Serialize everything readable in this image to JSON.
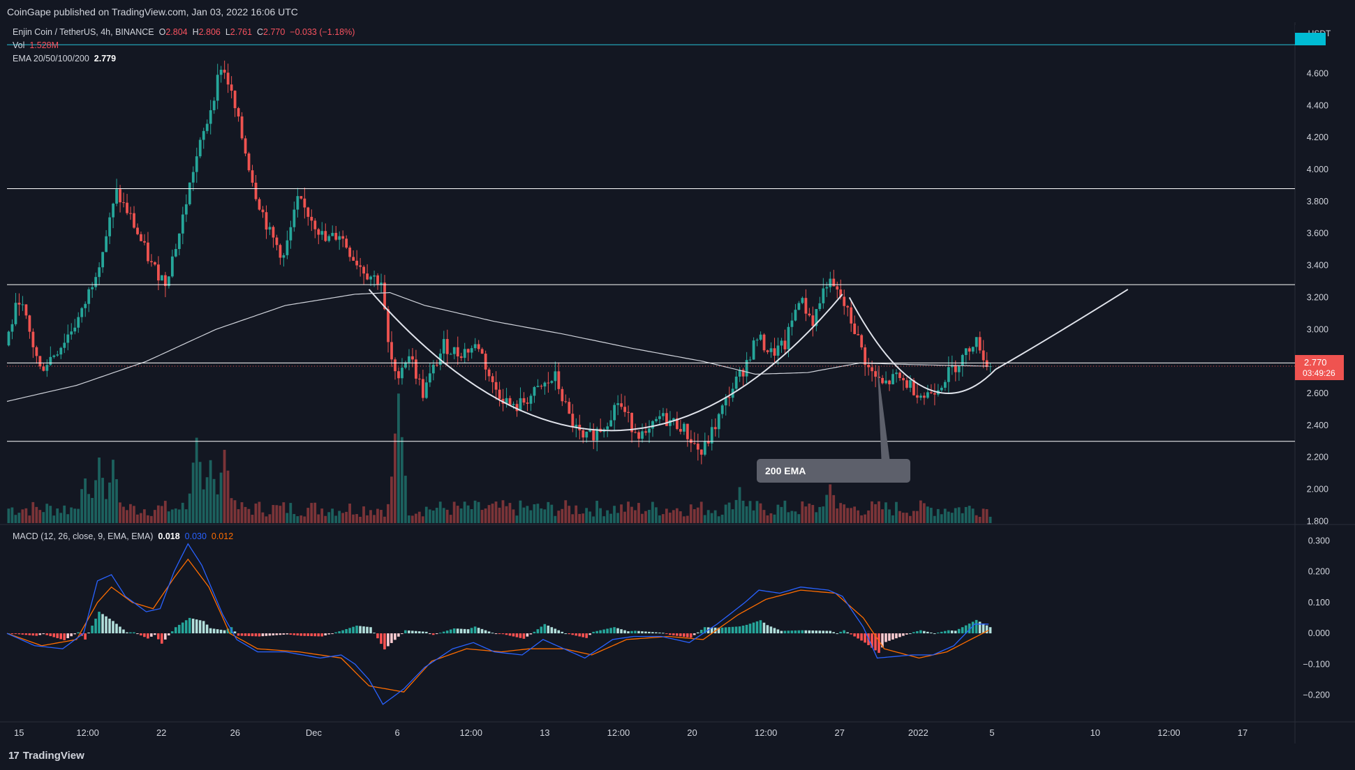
{
  "header": {
    "publisher": "CoinGape published on TradingView.com, Jan 03, 2022 16:06 UTC"
  },
  "legend": {
    "symbol": "Enjin Coin / TetherUS, 4h, BINANCE",
    "o_label": "O",
    "o_value": "2.804",
    "h_label": "H",
    "h_value": "2.806",
    "l_label": "L",
    "l_value": "2.761",
    "c_label": "C",
    "c_value": "2.770",
    "change": "−0.033 (−1.18%)",
    "vol_label": "Vol",
    "vol_value": "1.528M",
    "ema_label": "EMA 20/50/100/200",
    "ema_value": "2.779",
    "macd_label": "MACD (12, 26, close, 9, EMA, EMA)",
    "macd_hist": "0.018",
    "macd_line": "0.030",
    "macd_signal": "0.012"
  },
  "price_axis": {
    "currency": "USDT",
    "last_price": "2.770",
    "countdown": "03:49:26"
  },
  "annotation": {
    "ema_callout": "200 EMA"
  },
  "footer": {
    "brand": "TradingView"
  },
  "colors": {
    "background": "#131722",
    "up": "#26a69a",
    "down": "#ef5350",
    "macd_line": "#2962ff",
    "signal_line": "#ff6d00",
    "drawings": "#ffffff",
    "callout": "#5d606b"
  },
  "chart_data": [
    {
      "type": "candlestick",
      "title": "Enjin Coin / TetherUS, 4h, BINANCE",
      "x_tick_labels": [
        "15",
        "12:00",
        "22",
        "26",
        "Dec",
        "6",
        "12:00",
        "13",
        "12:00",
        "20",
        "12:00",
        "27",
        "2022",
        "5",
        "10",
        "12:00",
        "17"
      ],
      "y_tick_labels": [
        "1.800",
        "2.000",
        "2.200",
        "2.400",
        "2.600",
        "3.000",
        "3.200",
        "3.400",
        "3.600",
        "3.800",
        "4.000",
        "4.200",
        "4.400",
        "4.600"
      ],
      "ylim": [
        1.78,
        4.82
      ],
      "horizontal_levels": [
        3.88,
        3.28,
        2.79,
        2.3
      ],
      "last_price": 2.77,
      "price_path": [
        [
          0,
          2.9
        ],
        [
          4,
          3.2
        ],
        [
          10,
          2.75
        ],
        [
          16,
          2.9
        ],
        [
          22,
          3.1
        ],
        [
          28,
          3.5
        ],
        [
          32,
          3.85
        ],
        [
          36,
          3.7
        ],
        [
          42,
          3.4
        ],
        [
          46,
          3.3
        ],
        [
          50,
          3.6
        ],
        [
          54,
          4.0
        ],
        [
          58,
          4.3
        ],
        [
          62,
          4.65
        ],
        [
          64,
          4.55
        ],
        [
          68,
          4.2
        ],
        [
          72,
          3.85
        ],
        [
          76,
          3.6
        ],
        [
          80,
          3.45
        ],
        [
          84,
          3.8
        ],
        [
          88,
          3.7
        ],
        [
          92,
          3.55
        ],
        [
          96,
          3.6
        ],
        [
          100,
          3.45
        ],
        [
          104,
          3.35
        ],
        [
          108,
          3.3
        ],
        [
          110,
          2.9
        ],
        [
          112,
          2.7
        ],
        [
          116,
          2.85
        ],
        [
          120,
          2.6
        ],
        [
          126,
          2.9
        ],
        [
          130,
          2.85
        ],
        [
          136,
          2.9
        ],
        [
          140,
          2.65
        ],
        [
          146,
          2.5
        ],
        [
          152,
          2.6
        ],
        [
          158,
          2.7
        ],
        [
          162,
          2.45
        ],
        [
          166,
          2.3
        ],
        [
          172,
          2.4
        ],
        [
          176,
          2.55
        ],
        [
          180,
          2.4
        ],
        [
          184,
          2.32
        ],
        [
          188,
          2.45
        ],
        [
          194,
          2.4
        ],
        [
          200,
          2.22
        ],
        [
          204,
          2.4
        ],
        [
          208,
          2.6
        ],
        [
          212,
          2.75
        ],
        [
          216,
          2.95
        ],
        [
          220,
          2.85
        ],
        [
          224,
          2.9
        ],
        [
          228,
          3.2
        ],
        [
          232,
          3.05
        ],
        [
          236,
          3.3
        ],
        [
          240,
          3.2
        ],
        [
          244,
          3.0
        ],
        [
          248,
          2.75
        ],
        [
          252,
          2.65
        ],
        [
          256,
          2.7
        ],
        [
          260,
          2.65
        ],
        [
          264,
          2.58
        ],
        [
          268,
          2.65
        ],
        [
          272,
          2.75
        ],
        [
          276,
          2.85
        ],
        [
          278,
          2.93
        ],
        [
          280,
          2.9
        ],
        [
          282,
          2.77
        ]
      ],
      "ema200_path": [
        [
          0,
          2.55
        ],
        [
          20,
          2.65
        ],
        [
          40,
          2.8
        ],
        [
          60,
          3.0
        ],
        [
          80,
          3.15
        ],
        [
          100,
          3.22
        ],
        [
          110,
          3.23
        ],
        [
          120,
          3.15
        ],
        [
          140,
          3.05
        ],
        [
          160,
          2.97
        ],
        [
          180,
          2.88
        ],
        [
          200,
          2.8
        ],
        [
          215,
          2.72
        ],
        [
          230,
          2.73
        ],
        [
          245,
          2.79
        ],
        [
          260,
          2.78
        ],
        [
          282,
          2.77
        ]
      ],
      "volume_peaks_M": [
        [
          22,
          4.0
        ],
        [
          26,
          6.0
        ],
        [
          30,
          5.5
        ],
        [
          54,
          8.0
        ],
        [
          58,
          6.0
        ],
        [
          62,
          7.0
        ],
        [
          112,
          12.0
        ],
        [
          210,
          3.0
        ],
        [
          236,
          3.5
        ]
      ]
    },
    {
      "type": "line",
      "title": "MACD (12, 26, close, 9, EMA, EMA)",
      "y_tick_labels": [
        "-0.200",
        "-0.100",
        "0.000",
        "0.100",
        "0.200",
        "0.300"
      ],
      "ylim": [
        -0.28,
        0.33
      ],
      "series": [
        {
          "name": "MACD",
          "points": [
            [
              0,
              0.0
            ],
            [
              8,
              -0.04
            ],
            [
              16,
              -0.05
            ],
            [
              22,
              0.0
            ],
            [
              26,
              0.17
            ],
            [
              30,
              0.19
            ],
            [
              34,
              0.12
            ],
            [
              40,
              0.07
            ],
            [
              44,
              0.08
            ],
            [
              48,
              0.2
            ],
            [
              52,
              0.29
            ],
            [
              56,
              0.22
            ],
            [
              62,
              0.06
            ],
            [
              66,
              -0.02
            ],
            [
              72,
              -0.06
            ],
            [
              80,
              -0.06
            ],
            [
              90,
              -0.08
            ],
            [
              96,
              -0.07
            ],
            [
              100,
              -0.1
            ],
            [
              104,
              -0.15
            ],
            [
              108,
              -0.23
            ],
            [
              114,
              -0.18
            ],
            [
              120,
              -0.11
            ],
            [
              128,
              -0.05
            ],
            [
              134,
              -0.03
            ],
            [
              140,
              -0.06
            ],
            [
              148,
              -0.07
            ],
            [
              154,
              -0.02
            ],
            [
              160,
              -0.05
            ],
            [
              166,
              -0.08
            ],
            [
              174,
              -0.02
            ],
            [
              180,
              -0.01
            ],
            [
              188,
              -0.01
            ],
            [
              196,
              -0.03
            ],
            [
              204,
              0.03
            ],
            [
              212,
              0.1
            ],
            [
              216,
              0.14
            ],
            [
              222,
              0.13
            ],
            [
              228,
              0.15
            ],
            [
              236,
              0.14
            ],
            [
              240,
              0.12
            ],
            [
              246,
              0.02
            ],
            [
              250,
              -0.08
            ],
            [
              260,
              -0.07
            ],
            [
              266,
              -0.07
            ],
            [
              272,
              -0.04
            ],
            [
              278,
              0.03
            ],
            [
              282,
              0.03
            ]
          ]
        },
        {
          "name": "Signal",
          "points": [
            [
              0,
              0.0
            ],
            [
              10,
              -0.04
            ],
            [
              20,
              -0.02
            ],
            [
              26,
              0.1
            ],
            [
              30,
              0.15
            ],
            [
              36,
              0.1
            ],
            [
              42,
              0.08
            ],
            [
              48,
              0.18
            ],
            [
              52,
              0.24
            ],
            [
              58,
              0.15
            ],
            [
              64,
              0.0
            ],
            [
              72,
              -0.05
            ],
            [
              84,
              -0.06
            ],
            [
              96,
              -0.08
            ],
            [
              104,
              -0.17
            ],
            [
              114,
              -0.19
            ],
            [
              122,
              -0.09
            ],
            [
              132,
              -0.05
            ],
            [
              142,
              -0.06
            ],
            [
              150,
              -0.05
            ],
            [
              160,
              -0.05
            ],
            [
              168,
              -0.07
            ],
            [
              178,
              -0.02
            ],
            [
              190,
              -0.01
            ],
            [
              200,
              -0.02
            ],
            [
              210,
              0.06
            ],
            [
              218,
              0.11
            ],
            [
              228,
              0.14
            ],
            [
              238,
              0.13
            ],
            [
              246,
              0.05
            ],
            [
              252,
              -0.05
            ],
            [
              262,
              -0.08
            ],
            [
              270,
              -0.06
            ],
            [
              282,
              0.01
            ]
          ]
        }
      ]
    }
  ]
}
